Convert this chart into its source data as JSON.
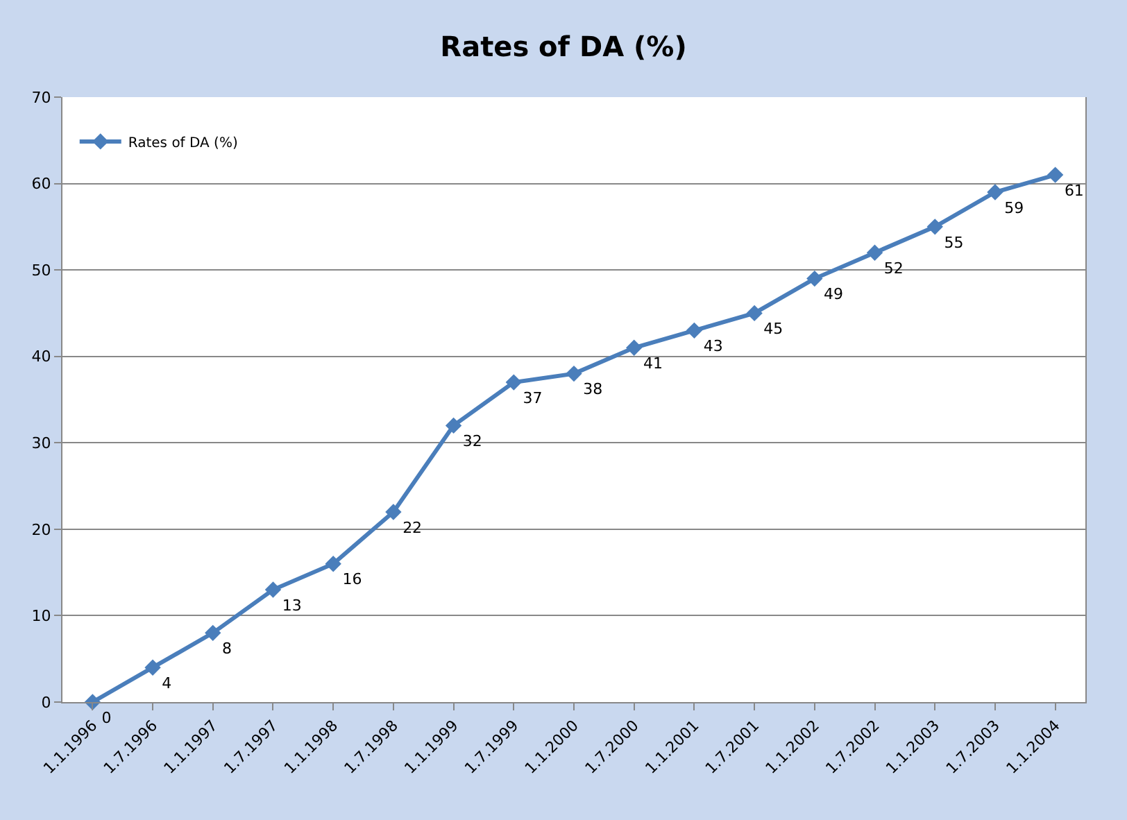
{
  "chart_data": {
    "type": "line",
    "title": "Rates of DA (%)",
    "categories": [
      "1.1.1996",
      "1.7.1996",
      "1.1.1997",
      "1.7.1997",
      "1.1.1998",
      "1.7.1998",
      "1.1.1999",
      "1.7.1999",
      "1.1.2000",
      "1.7.2000",
      "1.1.2001",
      "1.7.2001",
      "1.1.2002",
      "1.7.2002",
      "1.1.2003",
      "1.7.2003",
      "1.1.2004"
    ],
    "series": [
      {
        "name": "Rates of DA (%)",
        "color": "#4a7ebb",
        "values": [
          0,
          4,
          8,
          13,
          16,
          22,
          32,
          37,
          38,
          41,
          43,
          45,
          49,
          52,
          55,
          59,
          61
        ]
      }
    ],
    "ylim": [
      0,
      70
    ],
    "yticks": [
      0,
      10,
      20,
      30,
      40,
      50,
      60,
      70
    ],
    "grid": "y",
    "legend": "top left",
    "marker": "diamond",
    "line_style": "solid",
    "data_labels": true
  }
}
